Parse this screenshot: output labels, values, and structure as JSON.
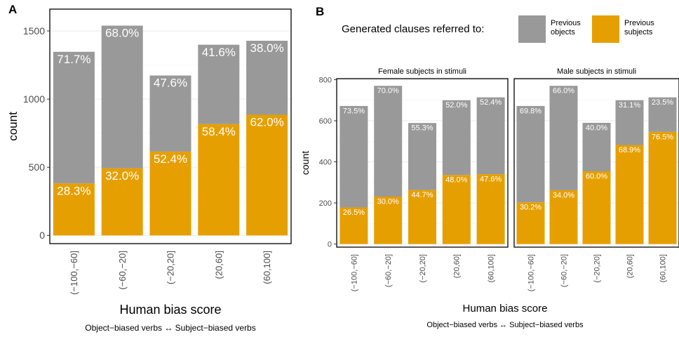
{
  "legend": {
    "title": "Generated clauses referred to:",
    "items": [
      {
        "label_lines": [
          "Previous",
          "objects"
        ],
        "color": "#999999"
      },
      {
        "label_lines": [
          "Previous",
          "subjects"
        ],
        "color": "#E69F00"
      }
    ]
  },
  "colors": {
    "objects": "#999999",
    "subjects": "#E69F00"
  },
  "chart_data": [
    {
      "panel_label": "A",
      "type": "bar",
      "stacked": true,
      "categories": [
        "(−100,−60]",
        "(−60,−20]",
        "(−20,20]",
        "(20,60]",
        "(60,100]"
      ],
      "series": [
        {
          "name": "Previous subjects",
          "values": [
            382,
            493,
            615,
            817,
            885
          ],
          "percent_labels": [
            "28.3%",
            "32.0%",
            "52.4%",
            "58.4%",
            "62.0%"
          ]
        },
        {
          "name": "Previous objects",
          "values": [
            965,
            1046,
            558,
            582,
            543
          ],
          "percent_labels": [
            "71.7%",
            "68.0%",
            "47.6%",
            "41.6%",
            "38.0%"
          ]
        }
      ],
      "totals": [
        1347,
        1539,
        1173,
        1399,
        1428
      ],
      "xlabel": "Human bias score",
      "xsublabel": "Object−biased verbs ↔ Subject−biased verbs",
      "ylabel": "count",
      "yticks": [
        0,
        500,
        1000,
        1500
      ],
      "ylim": [
        -60,
        1660
      ],
      "grid": true
    },
    {
      "panel_label": "B",
      "type": "bar",
      "stacked": true,
      "xlabel": "Human bias score",
      "xsublabel": "Object−biased verbs ↔ Subject−biased verbs",
      "ylabel": "count",
      "yticks": [
        0,
        200,
        400,
        600,
        800
      ],
      "ylim": [
        -15,
        805
      ],
      "grid": true,
      "facets": [
        {
          "title": "Female subjects in stimuli",
          "categories": [
            "(−100,−60]",
            "(−60,−20]",
            "(−20,20]",
            "(20,60]",
            "(60,100]"
          ],
          "series": [
            {
              "name": "Previous subjects",
              "values": [
                178,
                231,
                263,
                336,
                340
              ],
              "percent_labels": [
                "26.5%",
                "30.0%",
                "44.7%",
                "48.0%",
                "47.6%"
              ]
            },
            {
              "name": "Previous objects",
              "values": [
                494,
                539,
                326,
                364,
                374
              ],
              "percent_labels": [
                "73.5%",
                "70.0%",
                "55.3%",
                "52.0%",
                "52.4%"
              ]
            }
          ],
          "totals": [
            672,
            770,
            589,
            700,
            714
          ]
        },
        {
          "title": "Male subjects in stimuli",
          "categories": [
            "(−100,−60]",
            "(−60,−20]",
            "(−20,20]",
            "(20,60]",
            "(60,100]"
          ],
          "series": [
            {
              "name": "Previous subjects",
              "values": [
                203,
                262,
                354,
                482,
                546
              ],
              "percent_labels": [
                "30.2%",
                "34.0%",
                "60.0%",
                "68.9%",
                "76.5%"
              ]
            },
            {
              "name": "Previous objects",
              "values": [
                469,
                508,
                236,
                218,
                168
              ],
              "percent_labels": [
                "69.8%",
                "66.0%",
                "40.0%",
                "31.1%",
                "23.5%"
              ]
            }
          ],
          "totals": [
            672,
            770,
            590,
            700,
            714
          ]
        }
      ]
    }
  ]
}
